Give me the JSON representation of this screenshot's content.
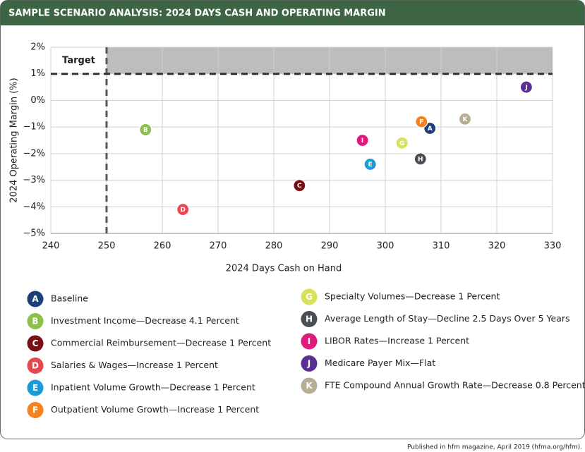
{
  "chart_data": {
    "type": "scatter",
    "title": "SAMPLE SCENARIO ANALYSIS: 2024 DAYS CASH AND OPERATING MARGIN",
    "x_label": "2024 Days Cash on Hand",
    "y_label": "2024 Operating Margin (%)",
    "xlim": [
      240,
      330
    ],
    "ylim": [
      -5,
      2
    ],
    "xticks": [
      240,
      250,
      260,
      270,
      280,
      290,
      300,
      310,
      320,
      330
    ],
    "yticks": [
      {
        "value": 2,
        "label": "2%"
      },
      {
        "value": 1,
        "label": "1%"
      },
      {
        "value": 0,
        "label": "0%"
      },
      {
        "value": -1,
        "label": "−1%"
      },
      {
        "value": -2,
        "label": "−2%"
      },
      {
        "value": -3,
        "label": "−3%"
      },
      {
        "value": -4,
        "label": "−4%"
      },
      {
        "value": -5,
        "label": "−5%"
      }
    ],
    "grid": true,
    "target": {
      "label": "Target",
      "x": 250,
      "y": 1
    },
    "series": [
      {
        "letter": "A",
        "name": "Baseline",
        "color": "#1d3f7a",
        "x": [
          308.0
        ],
        "values": [
          -1.05
        ]
      },
      {
        "letter": "B",
        "name": "Investment Income—Decrease 4.1 Percent",
        "color": "#8cc04a",
        "x": [
          257.0
        ],
        "values": [
          -1.1
        ]
      },
      {
        "letter": "C",
        "name": "Commercial Reimbursement—Decrease 1 Percent",
        "color": "#7a1014",
        "x": [
          284.6
        ],
        "values": [
          -3.2
        ]
      },
      {
        "letter": "D",
        "name": "Salaries & Wages—Increase 1 Percent",
        "color": "#e8474f",
        "x": [
          263.7
        ],
        "values": [
          -4.1
        ]
      },
      {
        "letter": "E",
        "name": "Inpatient Volume Growth—Decrease 1 Percent",
        "color": "#1b9ad6",
        "x": [
          297.3
        ],
        "values": [
          -2.4
        ]
      },
      {
        "letter": "F",
        "name": "Outpatient Volume Growth—Increase 1 Percent",
        "color": "#f58220",
        "x": [
          306.5
        ],
        "values": [
          -0.8
        ]
      },
      {
        "letter": "G",
        "name": "Specialty  Volumes—Decrease 1 Percent",
        "color": "#d7e15a",
        "x": [
          303.0
        ],
        "values": [
          -1.6
        ]
      },
      {
        "letter": "H",
        "name": "Average Length of Stay—Decline 2.5 Days Over 5 Years",
        "color": "#4a4f55",
        "x": [
          306.3
        ],
        "values": [
          -2.2
        ]
      },
      {
        "letter": "I",
        "name": "LIBOR Rates—Increase 1 Percent",
        "color": "#e0197d",
        "x": [
          295.9
        ],
        "values": [
          -1.5
        ]
      },
      {
        "letter": "J",
        "name": "Medicare Payer Mix—Flat",
        "color": "#5b2f91",
        "x": [
          325.3
        ],
        "values": [
          0.5
        ]
      },
      {
        "letter": "K",
        "name": "FTE Compound Annual Growth Rate—Decrease 0.8 Percent",
        "color": "#b5ad94",
        "x": [
          314.3
        ],
        "values": [
          -0.7
        ]
      }
    ],
    "source": "Published in hfm magazine, April 2019 (hfma.org/hfm)."
  }
}
